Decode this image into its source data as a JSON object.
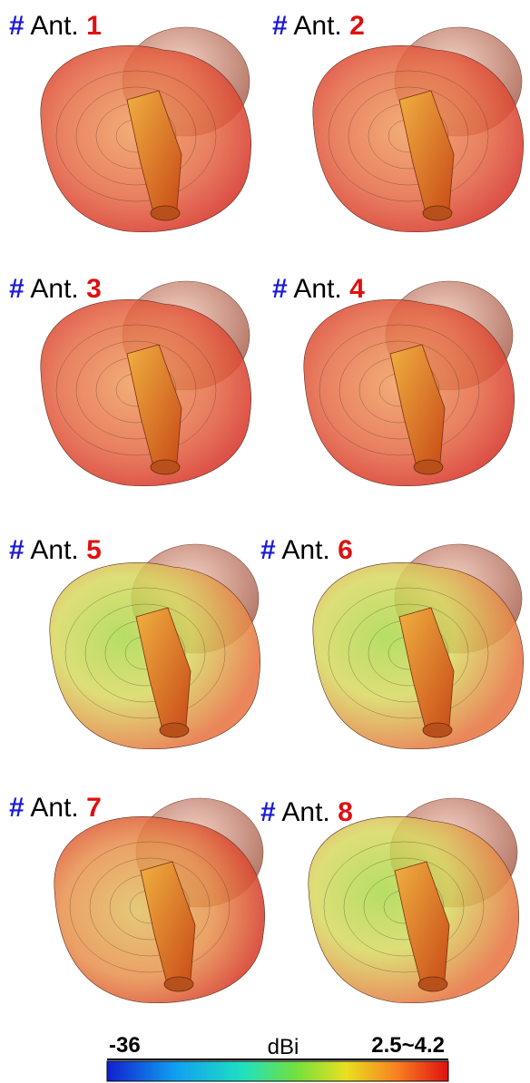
{
  "panels": [
    {
      "hash": "#",
      "label": "Ant.",
      "number": "1"
    },
    {
      "hash": "#",
      "label": "Ant.",
      "number": "2"
    },
    {
      "hash": "#",
      "label": "Ant.",
      "number": "3"
    },
    {
      "hash": "#",
      "label": "Ant.",
      "number": "4"
    },
    {
      "hash": "#",
      "label": "Ant.",
      "number": "5"
    },
    {
      "hash": "#",
      "label": "Ant.",
      "number": "6"
    },
    {
      "hash": "#",
      "label": "Ant.",
      "number": "7"
    },
    {
      "hash": "#",
      "label": "Ant.",
      "number": "8"
    }
  ],
  "colorbar": {
    "min_label": "-36",
    "unit": "dBi",
    "max_label": "2.5~4.2"
  }
}
